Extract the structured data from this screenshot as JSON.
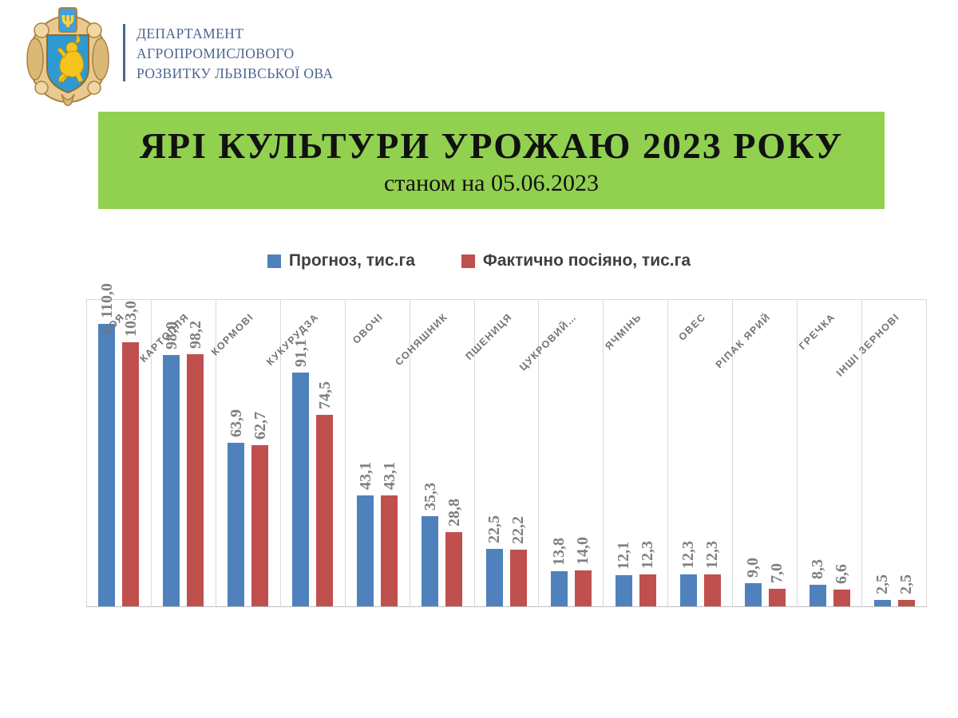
{
  "header": {
    "logo": "lviv-oblast-coat-of-arms",
    "org_lines": [
      "ДЕПАРТАМЕНТ",
      "АГРОПРОМИСЛОВОГО",
      "РОЗВИТКУ ЛЬВІВСЬКОЇ ОВА"
    ]
  },
  "banner": {
    "title": "ЯРІ КУЛЬТУРИ УРОЖАЮ 2023 РОКУ",
    "subtitle": "станом на 05.06.2023",
    "background_color": "#92D050"
  },
  "chart_data": {
    "type": "bar",
    "title": "ЯРІ КУЛЬТУРИ УРОЖАЮ 2023 РОКУ станом на 05.06.2023",
    "categories": [
      "СОЯ",
      "КАРТОПЛЯ",
      "КОРМОВІ",
      "КУКУРУДЗА",
      "ОВОЧІ",
      "СОНЯШНИК",
      "ПШЕНИЦЯ",
      "ЦУКРОВИЙ…",
      "ЯЧМІНЬ",
      "ОВЕС",
      "РІПАК ЯРИЙ",
      "ГРЕЧКА",
      "ІНШІ ЗЕРНОВІ"
    ],
    "series": [
      {
        "name": "Прогноз, тис.га",
        "color": "#4F81BD",
        "values": [
          110.0,
          98.0,
          63.9,
          91.1,
          43.1,
          35.3,
          22.5,
          13.8,
          12.1,
          12.3,
          9.0,
          8.3,
          2.5
        ]
      },
      {
        "name": "Фактично посіяно, тис.га",
        "color": "#C0504D",
        "values": [
          103.0,
          98.2,
          62.7,
          74.5,
          43.1,
          28.8,
          22.2,
          14.0,
          12.3,
          12.3,
          7.0,
          6.6,
          2.5
        ]
      }
    ],
    "xlabel": "",
    "ylabel": "",
    "ylim": [
      0,
      120
    ],
    "grid": "vertical category separators only",
    "legend_position": "top",
    "data_label_format": "one decimal, comma separator, rotated 90°",
    "colors": {
      "gridline": "#D9D9D9",
      "axis_line": "#BFBFBF",
      "data_label": "#7F7F7F",
      "category_label": "#737373",
      "legend_text": "#3F3F3F"
    }
  }
}
